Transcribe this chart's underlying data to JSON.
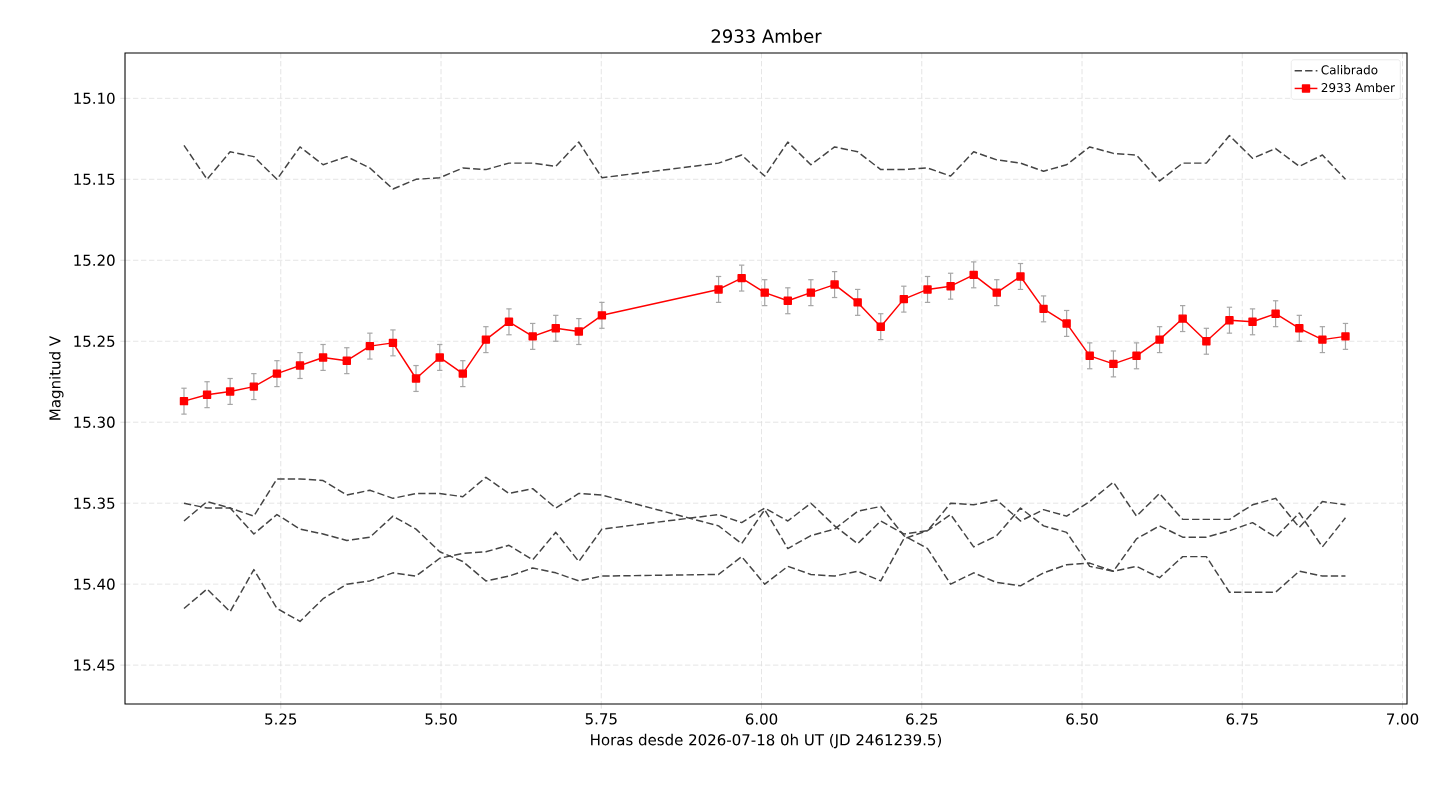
{
  "chart_data": {
    "type": "line",
    "title": "2933 Amber",
    "xlabel": "Horas desde 2026-07-18 0h UT (JD 2461239.5)",
    "ylabel": "Magnitud V",
    "x": [
      5.099,
      5.135,
      5.171,
      5.208,
      5.244,
      5.28,
      5.316,
      5.353,
      5.389,
      5.425,
      5.461,
      5.498,
      5.534,
      5.57,
      5.606,
      5.643,
      5.679,
      5.715,
      5.751,
      5.933,
      5.969,
      6.005,
      6.041,
      6.077,
      6.114,
      6.15,
      6.186,
      6.222,
      6.259,
      6.295,
      6.331,
      6.367,
      6.404,
      6.44,
      6.476,
      6.512,
      6.549,
      6.585,
      6.621,
      6.657,
      6.694,
      6.73,
      6.766,
      6.802,
      6.839,
      6.875,
      6.911
    ],
    "series": [
      {
        "name": "Calibrado",
        "color": "#444444",
        "line_style": "dashed",
        "marker": "none",
        "values": [
          15.129,
          15.15,
          15.133,
          15.136,
          15.15,
          15.13,
          15.141,
          15.136,
          15.143,
          15.156,
          15.15,
          15.149,
          15.143,
          15.144,
          15.14,
          15.14,
          15.142,
          15.127,
          15.149,
          15.14,
          15.135,
          15.148,
          15.127,
          15.141,
          15.13,
          15.133,
          15.144,
          15.144,
          15.143,
          15.148,
          15.133,
          15.138,
          15.14,
          15.145,
          15.141,
          15.13,
          15.134,
          15.135,
          15.151,
          15.14,
          15.14,
          15.123,
          15.137,
          15.131,
          15.142,
          15.135,
          15.15
        ]
      },
      {
        "color": "#444444",
        "line_style": "dashed",
        "marker": "none",
        "values": [
          15.35,
          15.353,
          15.353,
          15.358,
          15.335,
          15.335,
          15.336,
          15.345,
          15.342,
          15.347,
          15.344,
          15.344,
          15.346,
          15.334,
          15.344,
          15.341,
          15.353,
          15.344,
          15.345,
          15.364,
          15.375,
          15.354,
          15.378,
          15.37,
          15.366,
          15.355,
          15.352,
          15.37,
          15.378,
          15.4,
          15.393,
          15.399,
          15.401,
          15.393,
          15.388,
          15.387,
          15.392,
          15.389,
          15.396,
          15.383,
          15.383,
          15.405,
          15.405,
          15.405,
          15.392,
          15.395,
          15.395
        ]
      },
      {
        "color": "#444444",
        "line_style": "dashed",
        "marker": "none",
        "values": [
          15.361,
          15.349,
          15.353,
          15.369,
          15.357,
          15.366,
          15.369,
          15.373,
          15.371,
          15.358,
          15.366,
          15.38,
          15.386,
          15.398,
          15.395,
          15.39,
          15.393,
          15.398,
          15.395,
          15.394,
          15.383,
          15.4,
          15.389,
          15.394,
          15.395,
          15.392,
          15.398,
          15.372,
          15.367,
          15.357,
          15.377,
          15.37,
          15.353,
          15.364,
          15.368,
          15.389,
          15.392,
          15.372,
          15.364,
          15.371,
          15.371,
          15.367,
          15.362,
          15.371,
          15.356,
          15.377,
          15.359
        ]
      },
      {
        "color": "#444444",
        "line_style": "dashed",
        "marker": "none",
        "values": [
          15.415,
          15.403,
          15.417,
          15.391,
          15.415,
          15.423,
          15.409,
          15.4,
          15.398,
          15.393,
          15.395,
          15.384,
          15.381,
          15.38,
          15.376,
          15.385,
          15.368,
          15.386,
          15.366,
          15.357,
          15.362,
          15.353,
          15.361,
          15.35,
          15.364,
          15.375,
          15.361,
          15.369,
          15.367,
          15.35,
          15.351,
          15.348,
          15.361,
          15.354,
          15.358,
          15.349,
          15.337,
          15.358,
          15.344,
          15.36,
          15.36,
          15.36,
          15.351,
          15.347,
          15.365,
          15.349,
          15.351
        ]
      },
      {
        "name": "2933 Amber",
        "color": "#ff0000",
        "line_style": "solid",
        "marker": "square",
        "values": [
          15.287,
          15.283,
          15.281,
          15.278,
          15.27,
          15.265,
          15.26,
          15.262,
          15.253,
          15.251,
          15.273,
          15.26,
          15.27,
          15.249,
          15.238,
          15.247,
          15.242,
          15.244,
          15.234,
          15.218,
          15.211,
          15.22,
          15.225,
          15.22,
          15.215,
          15.226,
          15.241,
          15.224,
          15.218,
          15.216,
          15.209,
          15.22,
          15.21,
          15.23,
          15.239,
          15.259,
          15.264,
          15.259,
          15.249,
          15.236,
          15.25,
          15.237,
          15.238,
          15.233,
          15.242,
          15.249,
          15.247
        ],
        "errors": [
          0.008,
          0.008,
          0.008,
          0.008,
          0.008,
          0.008,
          0.008,
          0.008,
          0.008,
          0.008,
          0.008,
          0.008,
          0.008,
          0.008,
          0.008,
          0.008,
          0.008,
          0.008,
          0.008,
          0.008,
          0.008,
          0.008,
          0.008,
          0.008,
          0.008,
          0.008,
          0.008,
          0.008,
          0.008,
          0.008,
          0.008,
          0.008,
          0.008,
          0.008,
          0.008,
          0.008,
          0.008,
          0.008,
          0.008,
          0.008,
          0.008,
          0.008,
          0.008,
          0.008,
          0.008,
          0.008,
          0.008
        ]
      }
    ],
    "xlim": [
      5.007,
      7.007
    ],
    "ylim": [
      15.474,
      15.072
    ],
    "xticks": [
      {
        "value": 5.25,
        "label": "5.25"
      },
      {
        "value": 5.5,
        "label": "5.50"
      },
      {
        "value": 5.75,
        "label": "5.75"
      },
      {
        "value": 6.0,
        "label": "6.00"
      },
      {
        "value": 6.25,
        "label": "6.25"
      },
      {
        "value": 6.5,
        "label": "6.50"
      },
      {
        "value": 6.75,
        "label": "6.75"
      },
      {
        "value": 7.0,
        "label": "7.00"
      }
    ],
    "yticks": [
      {
        "value": 15.1,
        "label": "15.10"
      },
      {
        "value": 15.15,
        "label": "15.15"
      },
      {
        "value": 15.2,
        "label": "15.20"
      },
      {
        "value": 15.25,
        "label": "15.25"
      },
      {
        "value": 15.3,
        "label": "15.30"
      },
      {
        "value": 15.35,
        "label": "15.35"
      },
      {
        "value": 15.4,
        "label": "15.40"
      },
      {
        "value": 15.45,
        "label": "15.45"
      }
    ],
    "grid": true,
    "legend": "top right"
  }
}
